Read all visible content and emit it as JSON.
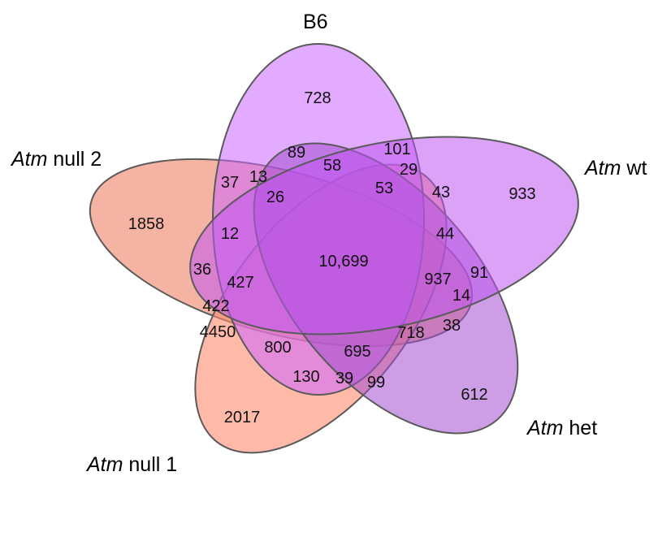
{
  "sets": [
    {
      "id": "b6",
      "italic": "",
      "label": "B6",
      "color": "#cc66ff"
    },
    {
      "id": "atm-wt",
      "italic": "Atm",
      "label": " wt",
      "color": "#bf55f0"
    },
    {
      "id": "atm-het",
      "italic": "Atm",
      "label": " het",
      "color": "#a44fd0"
    },
    {
      "id": "atm-null-1",
      "italic": "Atm",
      "label": " null 1",
      "color": "#ff8a70"
    },
    {
      "id": "atm-null-2",
      "italic": "Atm",
      "label": " null 2",
      "color": "#ef8a70"
    }
  ],
  "regions": [
    {
      "id": "b6-only",
      "value": "728"
    },
    {
      "id": "wt-only",
      "value": "933"
    },
    {
      "id": "het-only",
      "value": "612"
    },
    {
      "id": "null1-only",
      "value": "2017"
    },
    {
      "id": "null2-only",
      "value": "1858"
    },
    {
      "id": "all-five",
      "value": "10,699"
    },
    {
      "id": "r89",
      "value": "89"
    },
    {
      "id": "r101",
      "value": "101"
    },
    {
      "id": "r58",
      "value": "58"
    },
    {
      "id": "r29",
      "value": "29"
    },
    {
      "id": "r37",
      "value": "37"
    },
    {
      "id": "r13",
      "value": "13"
    },
    {
      "id": "r26",
      "value": "26"
    },
    {
      "id": "r53",
      "value": "53"
    },
    {
      "id": "r43",
      "value": "43"
    },
    {
      "id": "r44",
      "value": "44"
    },
    {
      "id": "r12",
      "value": "12"
    },
    {
      "id": "r36",
      "value": "36"
    },
    {
      "id": "r427",
      "value": "427"
    },
    {
      "id": "r937",
      "value": "937"
    },
    {
      "id": "r91",
      "value": "91"
    },
    {
      "id": "r14",
      "value": "14"
    },
    {
      "id": "r422",
      "value": "422"
    },
    {
      "id": "r4450",
      "value": "4450"
    },
    {
      "id": "r800",
      "value": "800"
    },
    {
      "id": "r695",
      "value": "695"
    },
    {
      "id": "r718",
      "value": "718"
    },
    {
      "id": "r38",
      "value": "38"
    },
    {
      "id": "r130",
      "value": "130"
    },
    {
      "id": "r39",
      "value": "39"
    },
    {
      "id": "r99",
      "value": "99"
    }
  ]
}
